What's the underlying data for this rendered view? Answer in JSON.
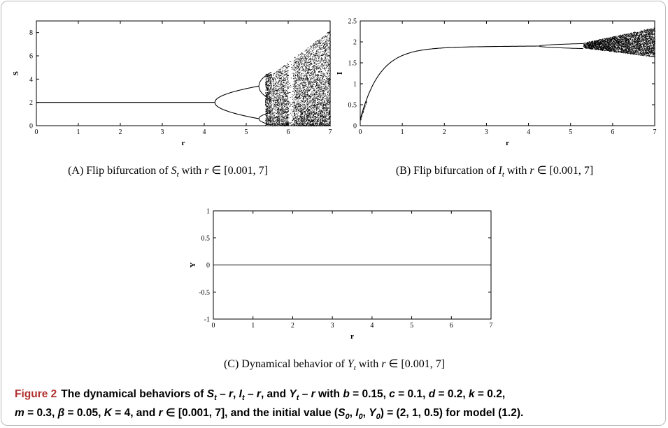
{
  "chart_data": [
    {
      "id": "A",
      "type": "scatter",
      "description": "Flip bifurcation diagram of S versus r",
      "xlabel": "r",
      "ylabel": "S",
      "xlim": [
        0,
        7
      ],
      "ylim": [
        0,
        9
      ],
      "xticks": [
        "0",
        "1",
        "2",
        "3",
        "4",
        "5",
        "6",
        "7"
      ],
      "yticks": [
        "0",
        "2",
        "4",
        "6",
        "8"
      ],
      "subcaption": "(A) Flip bifurcation of S_t with r ∈ [0.001,7]",
      "subcaption_parts": [
        "(A) Flip bifurcation of ",
        "S",
        "t",
        " with ",
        "r",
        " ∈ [0.001, 7]"
      ],
      "regimes": [
        {
          "r_range": [
            0.0,
            4.25
          ],
          "behavior": "fixed point",
          "S": 2.0
        },
        {
          "r_range": [
            4.25,
            5.3
          ],
          "behavior": "period-2",
          "S": [
            3.4,
            0.6
          ]
        },
        {
          "r_range": [
            5.3,
            5.6
          ],
          "behavior": "period-4 / period-doubling cascade"
        },
        {
          "r_range": [
            5.6,
            7.0
          ],
          "behavior": "chaos with periodic windows",
          "S_max": 8.2
        }
      ]
    },
    {
      "id": "B",
      "type": "scatter",
      "description": "Flip bifurcation diagram of I versus r",
      "xlabel": "r",
      "ylabel": "I",
      "xlim": [
        0,
        7
      ],
      "ylim": [
        0,
        2.5
      ],
      "xticks": [
        "0",
        "1",
        "2",
        "3",
        "4",
        "5",
        "6",
        "7"
      ],
      "yticks": [
        "0",
        "0.5",
        "1",
        "1.5",
        "2",
        "2.5"
      ],
      "subcaption": "(B) Flip bifurcation of I_t with r ∈ [0.001,7]",
      "subcaption_parts": [
        "(B) Flip bifurcation of ",
        "I",
        "t",
        " with ",
        "r",
        " ∈ [0.001, 7]"
      ],
      "regimes": [
        {
          "r_range": [
            0.0,
            4.25
          ],
          "behavior": "fixed point rising",
          "I_at_r0": 0.2,
          "I_at_r4.25": 1.9
        },
        {
          "r_range": [
            4.25,
            5.3
          ],
          "behavior": "period-2",
          "I": [
            1.93,
            1.87
          ]
        },
        {
          "r_range": [
            5.3,
            7.0
          ],
          "behavior": "chaos",
          "I_range": [
            1.6,
            2.35
          ]
        }
      ]
    },
    {
      "id": "C",
      "type": "line",
      "description": "Dynamical behavior of Y versus r",
      "xlabel": "r",
      "ylabel": "Y",
      "xlim": [
        0,
        7
      ],
      "ylim": [
        -1,
        1
      ],
      "xticks": [
        "0",
        "1",
        "2",
        "3",
        "4",
        "5",
        "6",
        "7"
      ],
      "yticks": [
        "-1",
        "-0.5",
        "0",
        "0.5",
        "1"
      ],
      "x": [
        0,
        7
      ],
      "y": [
        0,
        0
      ],
      "subcaption": "(C) Dynamical behavior of Y_t with r ∈ [0.001,7]",
      "subcaption_parts": [
        "(C) Dynamical behavior of ",
        "Y",
        "t",
        " with ",
        "r",
        " ∈ [0.001, 7]"
      ]
    }
  ],
  "caption": {
    "label": "Figure 2",
    "line1": "The dynamical behaviors of S_t – r, I_t – r, and Y_t – r with b = 0.15, c = 0.1, d = 0.2, k = 0.2,",
    "line2": "m = 0.3, β = 0.05, K = 4, and r ∈ [0.001, 7], and the initial value (S_0, I_0, Y_0) = (2, 1, 0.5) for model (1.2)."
  },
  "colors": {
    "caption_label": "#b0312e",
    "frame": "#b9b9b9",
    "ink": "#000000"
  }
}
